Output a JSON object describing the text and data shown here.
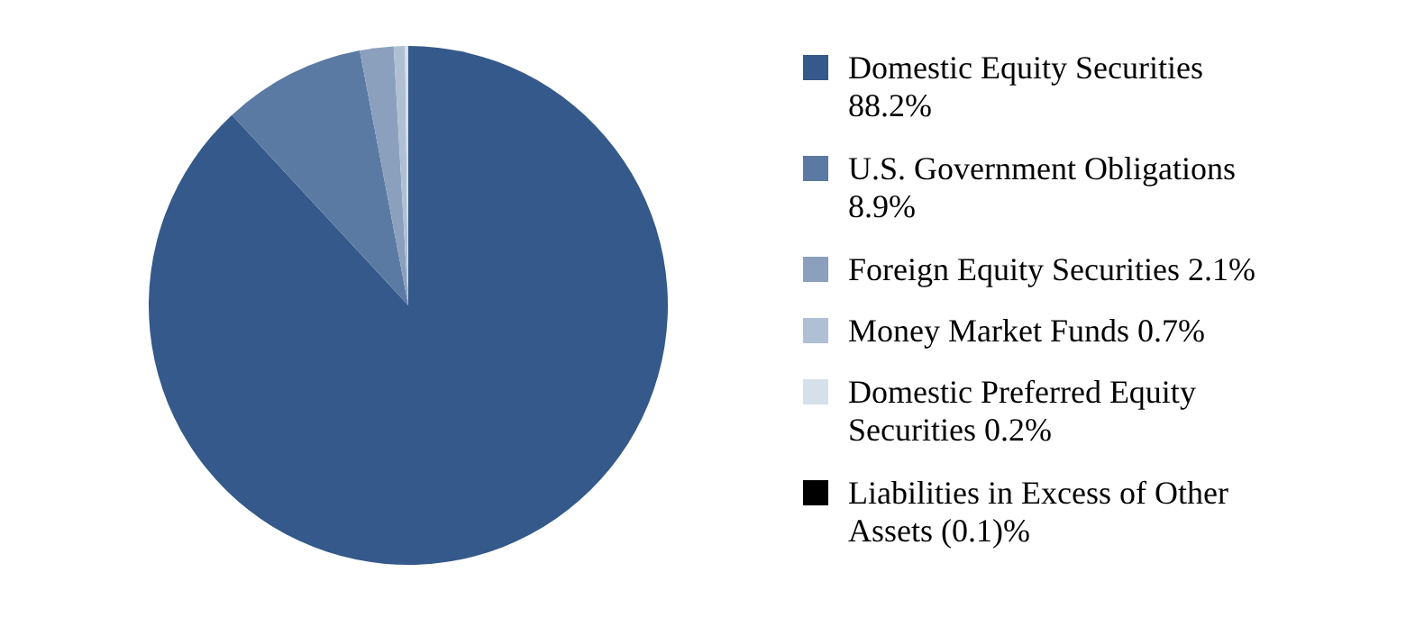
{
  "chart_data": {
    "type": "pie",
    "categories": [
      "Domestic Equity Securities",
      "U.S. Government Obligations",
      "Foreign Equity Securities",
      "Money Market Funds",
      "Domestic Preferred Equity Securities",
      "Liabilities in Excess of Other Assets"
    ],
    "values": [
      88.2,
      8.9,
      2.1,
      0.7,
      0.2,
      null
    ],
    "value_labels": [
      "88.2%",
      "8.9%",
      "2.1%",
      "0.7%",
      "0.2%",
      "(0.1)%"
    ],
    "colors": [
      "#34598a",
      "#5b7aa3",
      "#8aa0bd",
      "#b0c0d4",
      "#d6e0ea",
      "#000000"
    ],
    "legend": "right"
  }
}
